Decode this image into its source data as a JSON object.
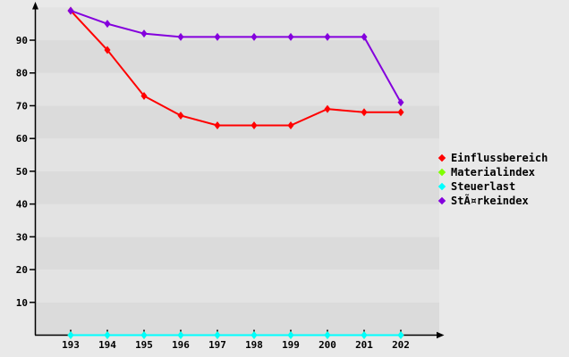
{
  "page": {
    "background_color": "#e9e9e9"
  },
  "chart_data": {
    "type": "line",
    "x": [
      193,
      194,
      195,
      196,
      197,
      198,
      199,
      200,
      201,
      202
    ],
    "series": [
      {
        "name": "Einflussbereich",
        "color": "#ff0000",
        "values": [
          99,
          87,
          73,
          67,
          64,
          64,
          64,
          69,
          68,
          68
        ]
      },
      {
        "name": "Materialindex",
        "color": "#7fff00",
        "values": [
          0,
          0,
          0,
          0,
          0,
          0,
          0,
          0,
          0,
          0
        ]
      },
      {
        "name": "Steuerlast",
        "color": "#00ffff",
        "values": [
          0,
          0,
          0,
          0,
          0,
          0,
          0,
          0,
          0,
          0
        ]
      },
      {
        "name": "StÃ¤rkeindex",
        "color": "#8400dd",
        "values": [
          99,
          95,
          92,
          91,
          91,
          91,
          91,
          91,
          91,
          71
        ]
      }
    ],
    "title": "",
    "xlabel": "",
    "ylabel": "",
    "y_ticks": [
      10,
      20,
      30,
      40,
      50,
      60,
      70,
      80,
      90
    ],
    "ylim": [
      0,
      100
    ],
    "xlim": [
      193,
      202
    ],
    "legend_position": "right",
    "grid": "alternating-horizontal-bands",
    "band_colors": {
      "light": "#e3e3e3",
      "dark": "#dbdbdb"
    },
    "axis_color": "#000000",
    "marker_shape": "diamond"
  }
}
